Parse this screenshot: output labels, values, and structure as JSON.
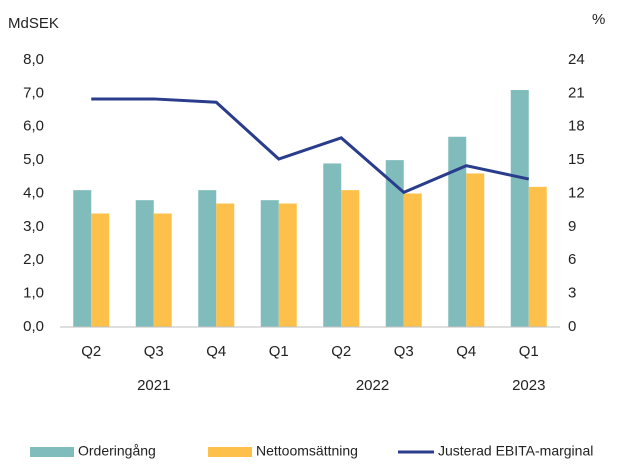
{
  "chart_data": {
    "type": "bar+line",
    "y_label": "MdSEK",
    "y2_label": "%",
    "categories": [
      "Q2",
      "Q3",
      "Q4",
      "Q1",
      "Q2",
      "Q3",
      "Q4",
      "Q1"
    ],
    "groups": [
      {
        "label": "2021",
        "span": 3
      },
      {
        "label": "2022",
        "span": 4
      },
      {
        "label": "2023",
        "span": 1
      }
    ],
    "series": [
      {
        "name": "Orderingång",
        "type": "bar",
        "color": "#80bcbb",
        "values": [
          4.1,
          3.8,
          4.1,
          3.8,
          4.9,
          5.0,
          5.7,
          7.1
        ]
      },
      {
        "name": "Nettoomsättning",
        "type": "bar",
        "color": "#fdc04a",
        "values": [
          3.4,
          3.4,
          3.7,
          3.7,
          4.1,
          4.0,
          4.6,
          4.2
        ]
      },
      {
        "name": "Justerad EBITA-marginal",
        "type": "line",
        "axis": "y2",
        "color": "#2a3c8c",
        "values": [
          20.5,
          20.5,
          20.2,
          15.1,
          17.0,
          12.1,
          14.5,
          13.3
        ]
      }
    ],
    "ylim": [
      0,
      8
    ],
    "yticks": [
      {
        "value": 0,
        "label": "0,0"
      },
      {
        "value": 1,
        "label": "1,0"
      },
      {
        "value": 2,
        "label": "2,0"
      },
      {
        "value": 3,
        "label": "3,0"
      },
      {
        "value": 4,
        "label": "4,0"
      },
      {
        "value": 5,
        "label": "5,0"
      },
      {
        "value": 6,
        "label": "6,0"
      },
      {
        "value": 7,
        "label": "7,0"
      },
      {
        "value": 8,
        "label": "8,0"
      }
    ],
    "y2lim": [
      0,
      24
    ],
    "y2ticks": [
      0,
      3,
      6,
      9,
      12,
      15,
      18,
      21,
      24
    ],
    "legend": "bottom"
  }
}
